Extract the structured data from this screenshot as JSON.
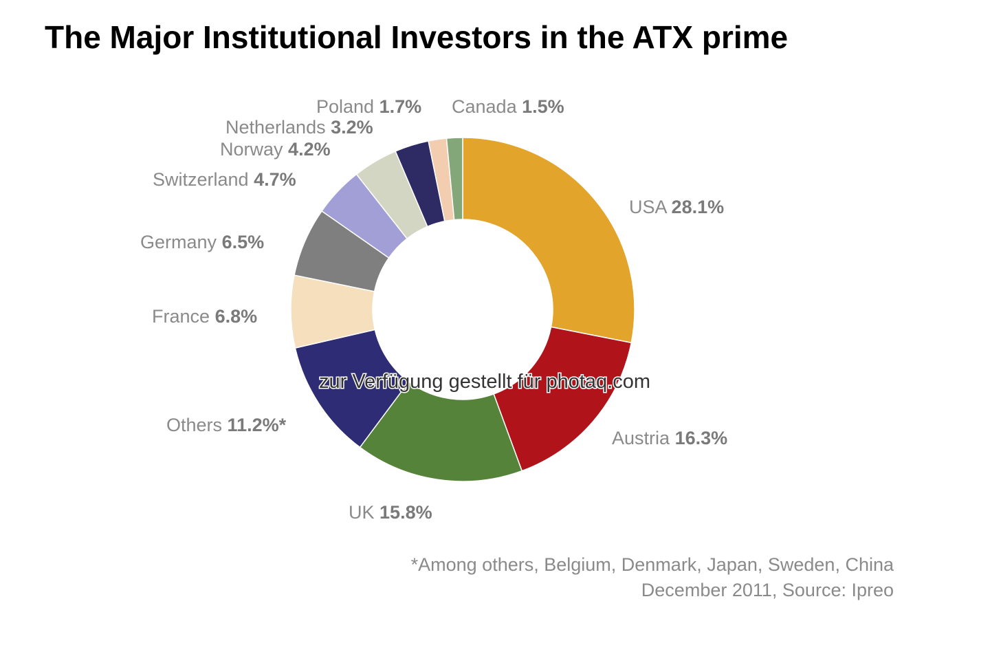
{
  "chart_data": {
    "type": "donut",
    "title": "The Major Institutional Investors in the ATX prime",
    "categories": [
      "USA",
      "Austria",
      "UK",
      "Others",
      "France",
      "Germany",
      "Switzerland",
      "Norway",
      "Netherlands",
      "Poland",
      "Canada"
    ],
    "values": [
      28.1,
      16.3,
      15.8,
      11.2,
      6.8,
      6.5,
      4.7,
      4.2,
      3.2,
      1.7,
      1.5
    ],
    "value_labels": [
      "28.1%",
      "16.3%",
      "15.8%",
      "11.2%*",
      "6.8%",
      "6.5%",
      "4.7%",
      "4.2%",
      "3.2%",
      "1.7%",
      "1.5%"
    ],
    "colors": [
      "#e3a42c",
      "#b01319",
      "#55833a",
      "#2e2c74",
      "#f6dfbc",
      "#7f7f7f",
      "#a29fd6",
      "#d4d6c4",
      "#2e2a63",
      "#f2cdb0",
      "#84a77a"
    ],
    "footnotes": [
      "*Among others, Belgium, Denmark, Japan, Sweden, China",
      "December 2011, Source: Ipreo"
    ],
    "watermark": "zur Verfügung gestellt für photaq.com"
  }
}
